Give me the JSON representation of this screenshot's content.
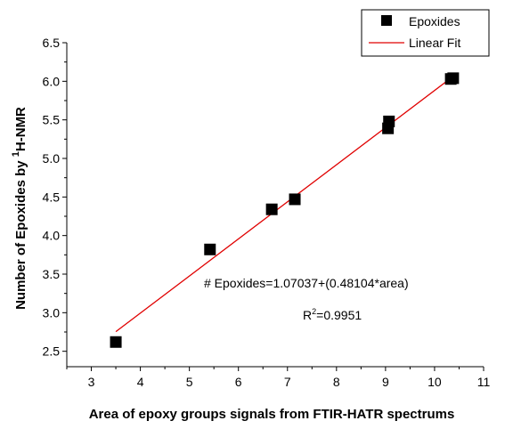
{
  "chart_data": {
    "type": "scatter",
    "xlabel": "Area of epoxy groups signals from FTIR-HATR spectrums",
    "ylabel_main": "Number of Epoxides by ",
    "ylabel_sup": "1",
    "ylabel_tail": "H-NMR",
    "xlim": [
      2.5,
      11
    ],
    "ylim": [
      2.3,
      6.5
    ],
    "xticks": [
      3,
      4,
      5,
      6,
      7,
      8,
      9,
      10,
      11
    ],
    "yticks": [
      2.5,
      3.0,
      3.5,
      4.0,
      4.5,
      5.0,
      5.5,
      6.0,
      6.5
    ],
    "ytick_labels": [
      "2.5",
      "3.0",
      "3.5",
      "4.0",
      "4.5",
      "5.0",
      "5.5",
      "6.0",
      "6.5"
    ],
    "grid": false,
    "legend_position": "top-right",
    "series": [
      {
        "name": "Epoxides",
        "marker": "square",
        "color": "#000000",
        "x": [
          3.5,
          5.42,
          6.68,
          7.15,
          9.05,
          9.07,
          10.33,
          10.38
        ],
        "y": [
          2.62,
          3.82,
          4.34,
          4.47,
          5.39,
          5.48,
          6.03,
          6.04
        ]
      },
      {
        "name": "Linear Fit",
        "style": "line",
        "color": "#e00000",
        "intercept": 1.07037,
        "slope": 0.48104,
        "x_range": [
          3.5,
          10.38
        ]
      }
    ],
    "annotations": {
      "equation": "# Epoxides=1.07037+(0.48104*area)",
      "r2_label": "R",
      "r2_sup": "2",
      "r2_value": "=0.9951"
    }
  }
}
